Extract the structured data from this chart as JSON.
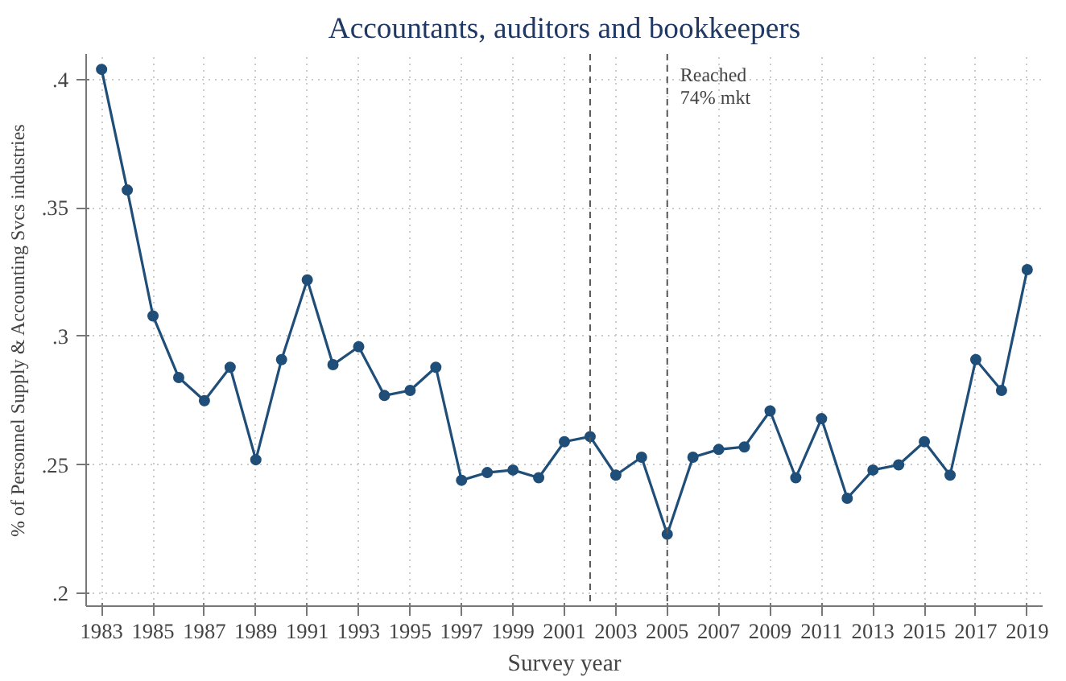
{
  "chart_data": {
    "type": "line",
    "title": "Accountants, auditors and bookkeepers",
    "xlabel": "Survey year",
    "ylabel": "% of Personnel Supply & Accounting Svcs industries",
    "x": [
      1983,
      1984,
      1985,
      1986,
      1987,
      1988,
      1989,
      1990,
      1991,
      1992,
      1993,
      1994,
      1995,
      1996,
      1997,
      1998,
      1999,
      2000,
      2001,
      2002,
      2003,
      2004,
      2005,
      2006,
      2007,
      2008,
      2009,
      2010,
      2011,
      2012,
      2013,
      2014,
      2015,
      2016,
      2017,
      2018,
      2019
    ],
    "series": [
      {
        "color": "#1f4e79",
        "values": [
          0.404,
          0.357,
          0.308,
          0.284,
          0.275,
          0.288,
          0.252,
          0.291,
          0.322,
          0.289,
          0.296,
          0.277,
          0.279,
          0.288,
          0.244,
          0.247,
          0.248,
          0.245,
          0.259,
          0.261,
          0.246,
          0.253,
          0.223,
          0.253,
          0.256,
          0.257,
          0.271,
          0.245,
          0.268,
          0.237,
          0.248,
          0.25,
          0.259,
          0.246,
          0.291,
          0.279,
          0.326
        ]
      }
    ],
    "xlim": [
      1982.4,
      2019.6
    ],
    "ylim": [
      0.195,
      0.41
    ],
    "xticks": [
      1983,
      1985,
      1987,
      1989,
      1991,
      1993,
      1995,
      1997,
      1999,
      2001,
      2003,
      2005,
      2007,
      2009,
      2011,
      2013,
      2015,
      2017,
      2019
    ],
    "yticks": [
      {
        "value": 0.2,
        "label": ".2"
      },
      {
        "value": 0.25,
        "label": ".25"
      },
      {
        "value": 0.3,
        "label": ".3"
      },
      {
        "value": 0.35,
        "label": ".35"
      },
      {
        "value": 0.4,
        "label": ".4"
      }
    ],
    "ref_lines": [
      {
        "axis": "x",
        "value": 2002,
        "color": "#555555",
        "line_style": "dashed"
      },
      {
        "axis": "x",
        "value": 2005,
        "label": "Reached\n74% mkt",
        "color": "#555555",
        "line_style": "dashed"
      }
    ],
    "grid": true,
    "marker": "circle",
    "line_style": "solid"
  }
}
